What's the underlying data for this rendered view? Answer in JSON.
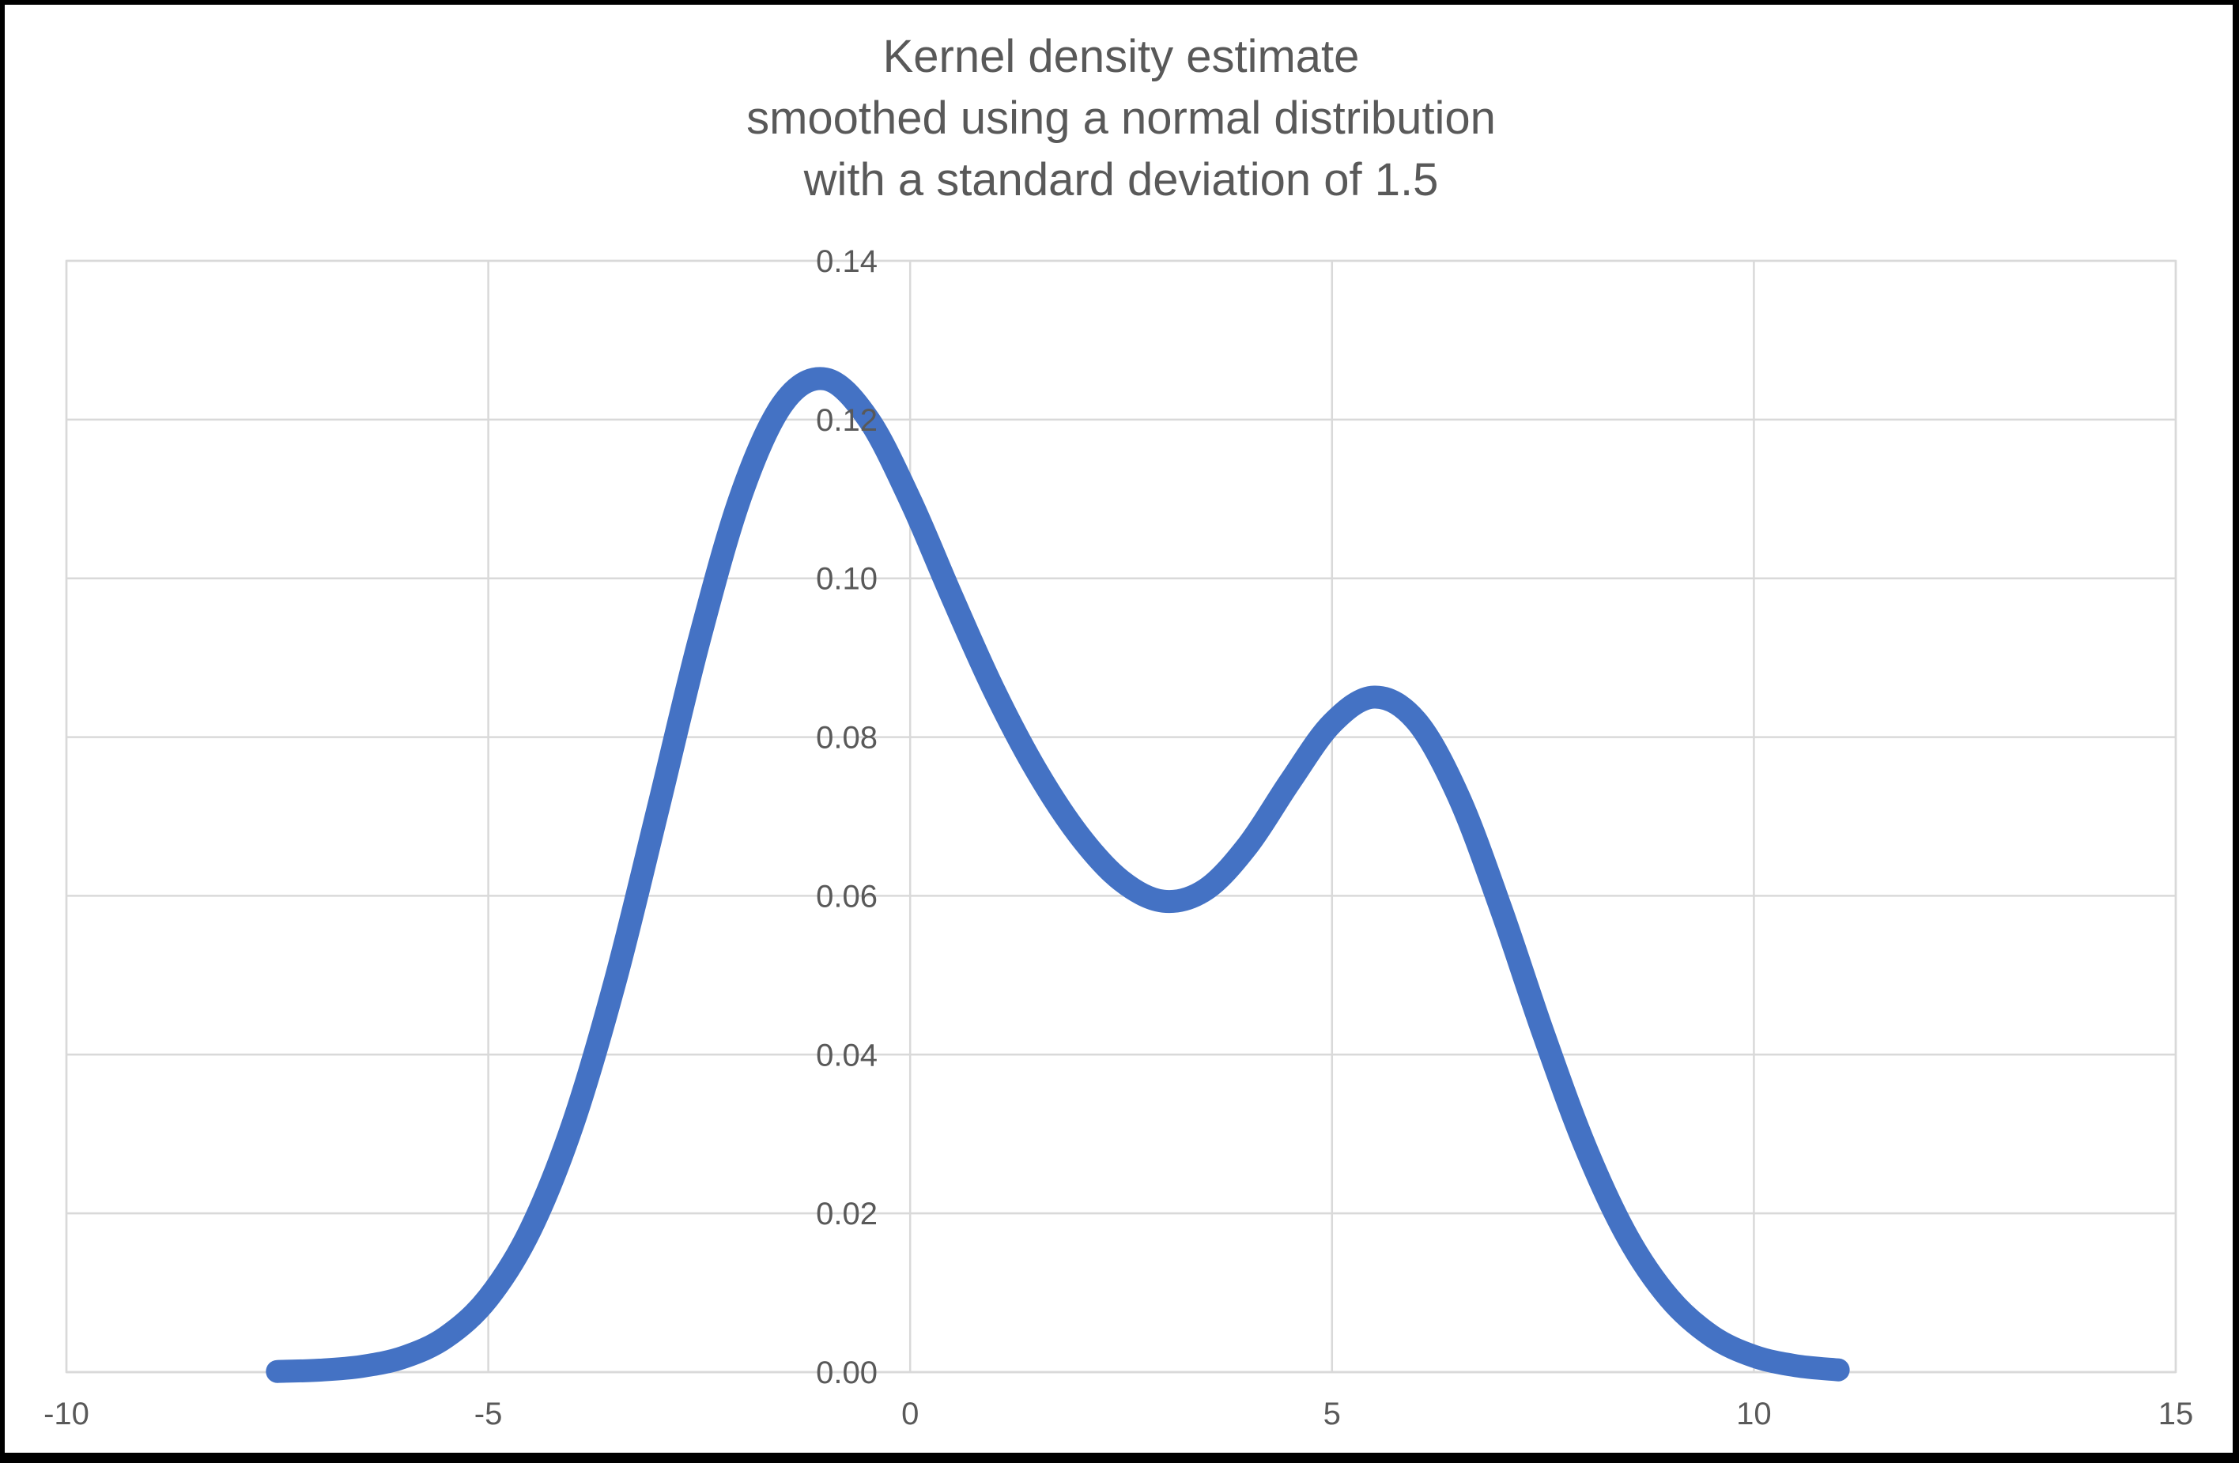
{
  "title": {
    "line1": "Kernel density estimate",
    "line2": "smoothed using a normal distribution",
    "line3": "with a standard deviation of 1.5"
  },
  "colors": {
    "curve": "#4472C4",
    "gridline": "#D9D9D9",
    "axis_line": "#BFBFBF",
    "label_text": "#595959",
    "frame": "#000000",
    "background": "#FFFFFF"
  },
  "chart_data": {
    "type": "line",
    "title": "Kernel density estimate smoothed using a normal distribution with a standard deviation of 1.5",
    "xlabel": "",
    "ylabel": "",
    "xlim": [
      -10,
      15
    ],
    "ylim": [
      0,
      0.14
    ],
    "grid": true,
    "legend": false,
    "x_tick_values": [
      -10,
      -5,
      0,
      5,
      10,
      15
    ],
    "x_tick_labels": [
      "-10",
      "-5",
      "0",
      "5",
      "10",
      "15"
    ],
    "y_tick_values": [
      0,
      0.02,
      0.04,
      0.06,
      0.08,
      0.1,
      0.12,
      0.14
    ],
    "y_tick_labels": [
      "0.00",
      "0.02",
      "0.04",
      "0.06",
      "0.08",
      "0.10",
      "0.12",
      "0.14"
    ],
    "series": [
      {
        "name": "kernel density estimate",
        "color": "#4472C4",
        "x": [
          -7.5,
          -7,
          -6.5,
          -6,
          -5.5,
          -5,
          -4.5,
          -4,
          -3.5,
          -3,
          -2.5,
          -2,
          -1.5,
          -1,
          -0.5,
          0,
          0.5,
          1,
          1.5,
          2,
          2.5,
          3,
          3.5,
          4,
          4.5,
          5,
          5.5,
          6,
          6.5,
          7,
          7.5,
          8,
          8.5,
          9,
          9.5,
          10,
          10.5,
          11
        ],
        "y": [
          8e-05,
          0.00025,
          0.00072,
          0.00188,
          0.00441,
          0.00935,
          0.01794,
          0.03116,
          0.04909,
          0.07043,
          0.0922,
          0.1106,
          0.12213,
          0.1251,
          0.12015,
          0.10989,
          0.09757,
          0.08578,
          0.07572,
          0.06767,
          0.06193,
          0.05933,
          0.06078,
          0.06633,
          0.07434,
          0.08173,
          0.08504,
          0.08202,
          0.07252,
          0.05846,
          0.04281,
          0.02844,
          0.01708,
          0.00928,
          0.00454,
          0.002,
          0.0008,
          0.00028
        ]
      }
    ]
  }
}
